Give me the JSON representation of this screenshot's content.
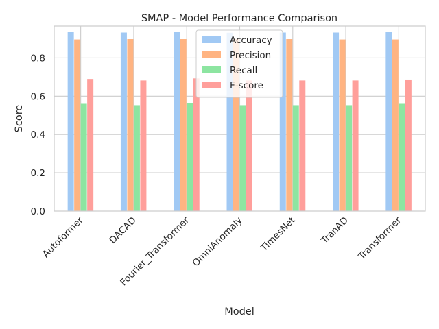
{
  "chart_data": {
    "type": "bar",
    "title": "SMAP - Model Performance Comparison",
    "xlabel": "Model",
    "ylabel": "Score",
    "ylim": [
      0,
      0.966
    ],
    "yticks": [
      "0.0",
      "0.2",
      "0.4",
      "0.6",
      "0.8"
    ],
    "grid": true,
    "legend_position": "top-center",
    "categories": [
      "Autoformer",
      "DACAD",
      "Fourier_Transformer",
      "OmniAnomaly",
      "TimesNet",
      "TranAD",
      "Transformer"
    ],
    "series": [
      {
        "name": "Accuracy",
        "color": "#a1c9f4",
        "values": [
          0.935,
          0.932,
          0.935,
          0.931,
          0.932,
          0.932,
          0.935
        ]
      },
      {
        "name": "Precision",
        "color": "#ffb482",
        "values": [
          0.896,
          0.898,
          0.898,
          0.898,
          0.898,
          0.896,
          0.896
        ]
      },
      {
        "name": "Recall",
        "color": "#8de5a1",
        "values": [
          0.56,
          0.553,
          0.563,
          0.553,
          0.553,
          0.553,
          0.56
        ]
      },
      {
        "name": "F-score",
        "color": "#ff9f9b",
        "values": [
          0.69,
          0.682,
          0.693,
          0.682,
          0.682,
          0.682,
          0.687
        ]
      }
    ]
  }
}
